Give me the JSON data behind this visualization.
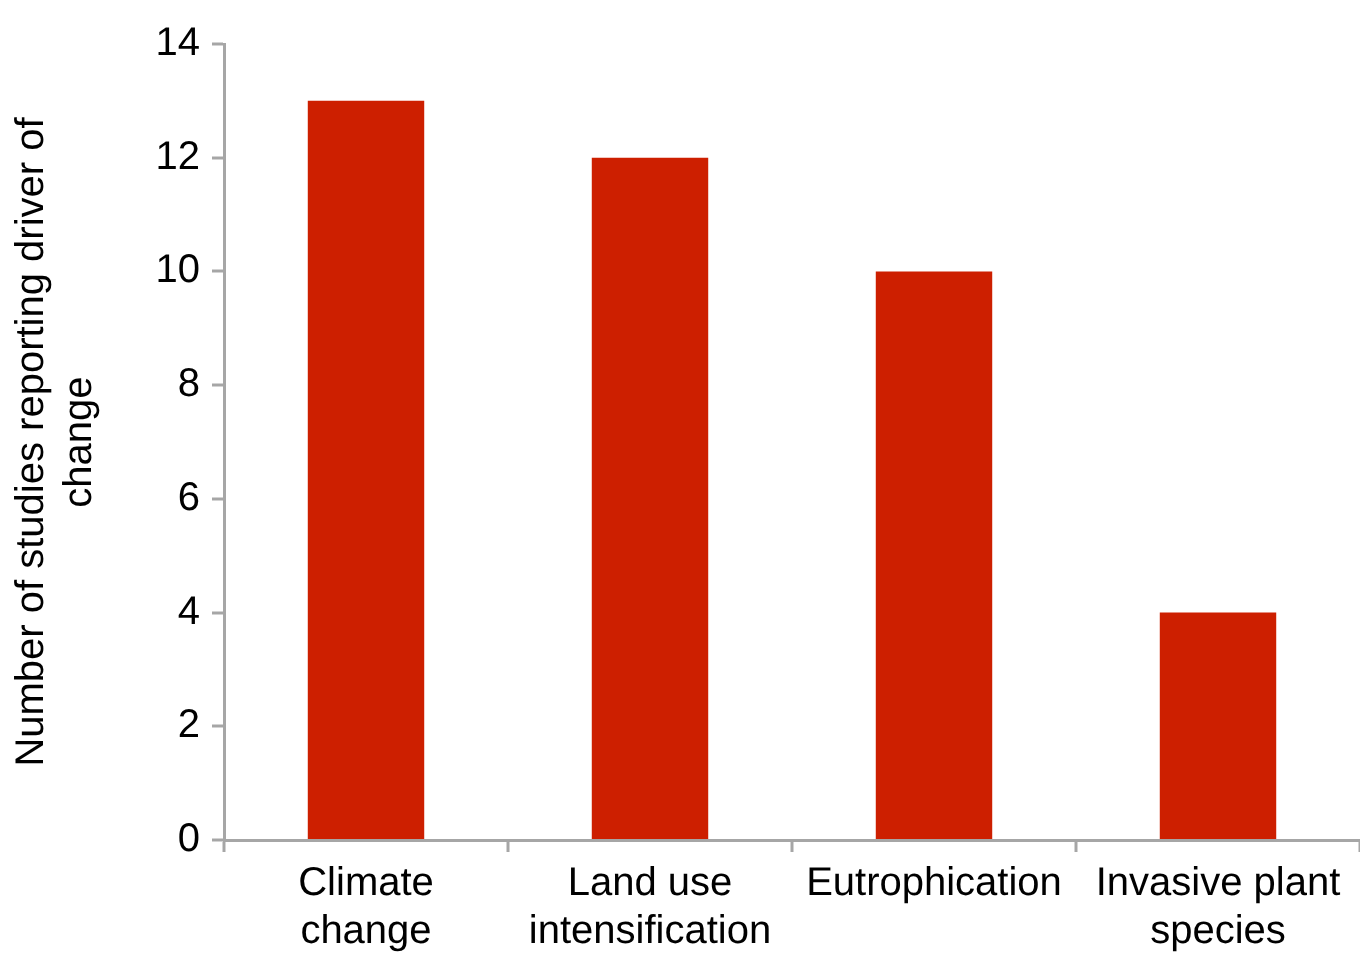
{
  "chart_data": {
    "type": "bar",
    "ylabel": "Number of studies reporting driver of change",
    "categories": [
      "Climate change",
      "Land use intensification",
      "Eutrophication",
      "Invasive plant species"
    ],
    "values": [
      13,
      12,
      10,
      4
    ],
    "color": "#cd1f00",
    "ylim": [
      0,
      14
    ],
    "yticks": [
      0,
      2,
      4,
      6,
      8,
      10,
      12,
      14
    ],
    "grid": false,
    "legend": false
  }
}
